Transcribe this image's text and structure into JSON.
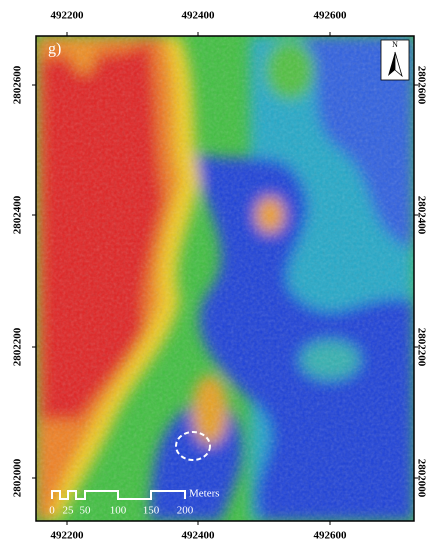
{
  "map": {
    "panel_label": "g)",
    "north_label": "N",
    "x_ticks": [
      "492200",
      "492400",
      "492600"
    ],
    "y_ticks": [
      "2802600",
      "2802400",
      "2802200",
      "2802000"
    ],
    "scale_bar": {
      "labels": [
        "0",
        "25",
        "50",
        "100",
        "150",
        "200"
      ],
      "unit": "Meters"
    }
  }
}
